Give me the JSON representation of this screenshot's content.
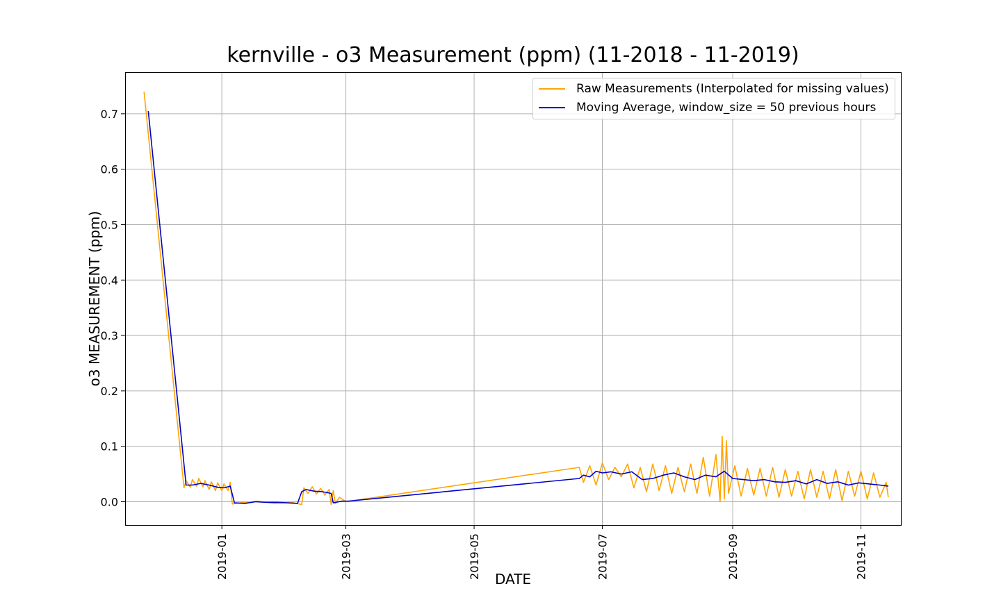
{
  "chart_data": {
    "type": "line",
    "title": "kernville - o3 Measurement (ppm) (11-2018 - 11-2019)",
    "xlabel": "DATE",
    "ylabel": "o3 MEASUREMENT (ppm)",
    "xlim": [
      "2018-11-16",
      "2019-11-20"
    ],
    "ylim": [
      -0.042,
      0.775
    ],
    "grid": true,
    "legend_position": "top-right",
    "x_ticks": [
      "2019-01",
      "2019-03",
      "2019-05",
      "2019-07",
      "2019-09",
      "2019-11"
    ],
    "y_ticks": [
      "0.0",
      "0.1",
      "0.2",
      "0.3",
      "0.4",
      "0.5",
      "0.6",
      "0.7"
    ],
    "colors": {
      "raw": "#ffa500",
      "avg": "#0000cc",
      "grid": "#b0b0b0"
    },
    "series": [
      {
        "name": "Raw Measurements (Interpolated for missing values)",
        "key": "raw",
        "x": [
          "2018-11-25",
          "2018-12-14",
          "2018-12-15",
          "2018-12-17",
          "2018-12-18",
          "2018-12-20",
          "2018-12-21",
          "2018-12-23",
          "2018-12-24",
          "2018-12-26",
          "2018-12-27",
          "2018-12-29",
          "2018-12-30",
          "2019-01-01",
          "2019-01-02",
          "2019-01-04",
          "2019-01-05",
          "2019-01-06",
          "2019-01-10",
          "2019-01-18",
          "2019-01-26",
          "2019-02-03",
          "2019-02-08",
          "2019-02-09",
          "2019-02-11",
          "2019-02-13",
          "2019-02-15",
          "2019-02-17",
          "2019-02-19",
          "2019-02-21",
          "2019-02-22",
          "2019-02-23",
          "2019-02-24",
          "2019-02-26",
          "2019-03-01",
          "2019-06-20",
          "2019-06-22",
          "2019-06-25",
          "2019-06-28",
          "2019-07-01",
          "2019-07-04",
          "2019-07-07",
          "2019-07-10",
          "2019-07-13",
          "2019-07-16",
          "2019-07-19",
          "2019-07-22",
          "2019-07-25",
          "2019-07-28",
          "2019-07-31",
          "2019-08-03",
          "2019-08-06",
          "2019-08-09",
          "2019-08-12",
          "2019-08-15",
          "2019-08-18",
          "2019-08-21",
          "2019-08-24",
          "2019-08-26",
          "2019-08-27",
          "2019-08-28",
          "2019-08-29",
          "2019-08-30",
          "2019-09-02",
          "2019-09-05",
          "2019-09-08",
          "2019-09-11",
          "2019-09-14",
          "2019-09-17",
          "2019-09-20",
          "2019-09-23",
          "2019-09-26",
          "2019-09-29",
          "2019-10-02",
          "2019-10-05",
          "2019-10-08",
          "2019-10-11",
          "2019-10-14",
          "2019-10-17",
          "2019-10-20",
          "2019-10-23",
          "2019-10-26",
          "2019-10-29",
          "2019-11-01",
          "2019-11-04",
          "2019-11-07",
          "2019-11-10",
          "2019-11-13",
          "2019-11-14"
        ],
        "y": [
          0.74,
          0.025,
          0.038,
          0.026,
          0.04,
          0.028,
          0.042,
          0.027,
          0.038,
          0.022,
          0.036,
          0.02,
          0.034,
          0.02,
          0.032,
          0.02,
          0.035,
          -0.004,
          -0.002,
          0.001,
          -0.003,
          -0.001,
          -0.005,
          0.025,
          0.015,
          0.027,
          0.014,
          0.024,
          0.012,
          0.022,
          -0.005,
          0.02,
          -0.003,
          0.008,
          0.0,
          0.062,
          0.035,
          0.065,
          0.03,
          0.07,
          0.04,
          0.062,
          0.045,
          0.068,
          0.025,
          0.062,
          0.018,
          0.068,
          0.02,
          0.065,
          0.015,
          0.062,
          0.018,
          0.068,
          0.015,
          0.08,
          0.01,
          0.085,
          0.0,
          0.118,
          0.005,
          0.11,
          0.015,
          0.065,
          0.01,
          0.06,
          0.012,
          0.06,
          0.01,
          0.062,
          0.008,
          0.058,
          0.01,
          0.055,
          0.005,
          0.058,
          0.008,
          0.055,
          0.005,
          0.058,
          0.002,
          0.055,
          0.01,
          0.055,
          0.005,
          0.052,
          0.008,
          0.035,
          0.008
        ]
      },
      {
        "name": "Moving Average, window_size = 50 previous hours",
        "key": "avg",
        "x": [
          "2018-11-27",
          "2018-12-15",
          "2018-12-18",
          "2018-12-22",
          "2018-12-26",
          "2018-12-30",
          "2019-01-02",
          "2019-01-05",
          "2019-01-07",
          "2019-01-12",
          "2019-01-17",
          "2019-01-22",
          "2019-01-27",
          "2019-02-01",
          "2019-02-06",
          "2019-02-08",
          "2019-02-10",
          "2019-02-14",
          "2019-02-18",
          "2019-02-22",
          "2019-02-23",
          "2019-02-27",
          "2019-03-02",
          "2019-06-20",
          "2019-06-22",
          "2019-06-25",
          "2019-06-28",
          "2019-07-01",
          "2019-07-05",
          "2019-07-10",
          "2019-07-15",
          "2019-07-20",
          "2019-07-25",
          "2019-07-30",
          "2019-08-04",
          "2019-08-09",
          "2019-08-14",
          "2019-08-19",
          "2019-08-24",
          "2019-08-28",
          "2019-09-01",
          "2019-09-06",
          "2019-09-11",
          "2019-09-16",
          "2019-09-21",
          "2019-09-26",
          "2019-10-01",
          "2019-10-06",
          "2019-10-11",
          "2019-10-16",
          "2019-10-21",
          "2019-10-26",
          "2019-10-31",
          "2019-11-05",
          "2019-11-10",
          "2019-11-14"
        ],
        "y": [
          0.705,
          0.03,
          0.03,
          0.033,
          0.03,
          0.026,
          0.025,
          0.028,
          -0.002,
          -0.003,
          0.0,
          -0.001,
          -0.001,
          -0.002,
          -0.003,
          0.018,
          0.022,
          0.019,
          0.018,
          0.015,
          -0.002,
          0.001,
          0.001,
          0.042,
          0.048,
          0.045,
          0.055,
          0.052,
          0.054,
          0.05,
          0.054,
          0.04,
          0.042,
          0.048,
          0.052,
          0.045,
          0.04,
          0.048,
          0.045,
          0.055,
          0.042,
          0.04,
          0.038,
          0.04,
          0.036,
          0.035,
          0.038,
          0.032,
          0.04,
          0.033,
          0.036,
          0.03,
          0.034,
          0.032,
          0.03,
          0.028
        ]
      }
    ]
  }
}
